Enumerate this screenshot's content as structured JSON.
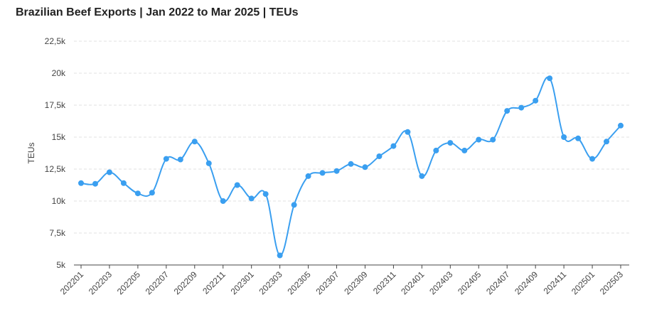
{
  "chart_data": {
    "type": "line",
    "title": "Brazilian Beef Exports | Jan 2022 to Mar 2025 | TEUs",
    "xlabel": "",
    "ylabel": "TEUs",
    "ylim": [
      5000,
      22500
    ],
    "yticks": [
      5000,
      7500,
      10000,
      12500,
      15000,
      17500,
      20000,
      22500
    ],
    "ytick_labels": [
      "5k",
      "7,5k",
      "10k",
      "12,5k",
      "15k",
      "17,5k",
      "20k",
      "22,5k"
    ],
    "x": [
      "202201",
      "202202",
      "202203",
      "202204",
      "202205",
      "202206",
      "202207",
      "202208",
      "202209",
      "202210",
      "202211",
      "202212",
      "202301",
      "202302",
      "202303",
      "202304",
      "202305",
      "202306",
      "202307",
      "202308",
      "202309",
      "202310",
      "202311",
      "202312",
      "202401",
      "202402",
      "202403",
      "202404",
      "202405",
      "202406",
      "202407",
      "202408",
      "202409",
      "202410",
      "202411",
      "202412",
      "202501",
      "202502",
      "202503"
    ],
    "xtick_labels": [
      "202201",
      "202203",
      "202205",
      "202207",
      "202209",
      "202211",
      "202301",
      "202303",
      "202305",
      "202307",
      "202309",
      "202311",
      "202401",
      "202403",
      "202405",
      "202407",
      "202409",
      "202411",
      "202501",
      "202503"
    ],
    "series": [
      {
        "name": "",
        "color": "#3a9ff0",
        "values": [
          11400,
          11350,
          12250,
          11400,
          10600,
          10650,
          13300,
          13250,
          14650,
          12950,
          10000,
          11250,
          10200,
          10550,
          5750,
          9700,
          11950,
          12200,
          12350,
          12900,
          12650,
          13500,
          14300,
          15400,
          11950,
          13950,
          14550,
          13950,
          14800,
          14800,
          17050,
          17300,
          17850,
          19600,
          15000,
          14900,
          13300,
          14650,
          15900
        ]
      }
    ],
    "grid": true,
    "legend": "none"
  }
}
